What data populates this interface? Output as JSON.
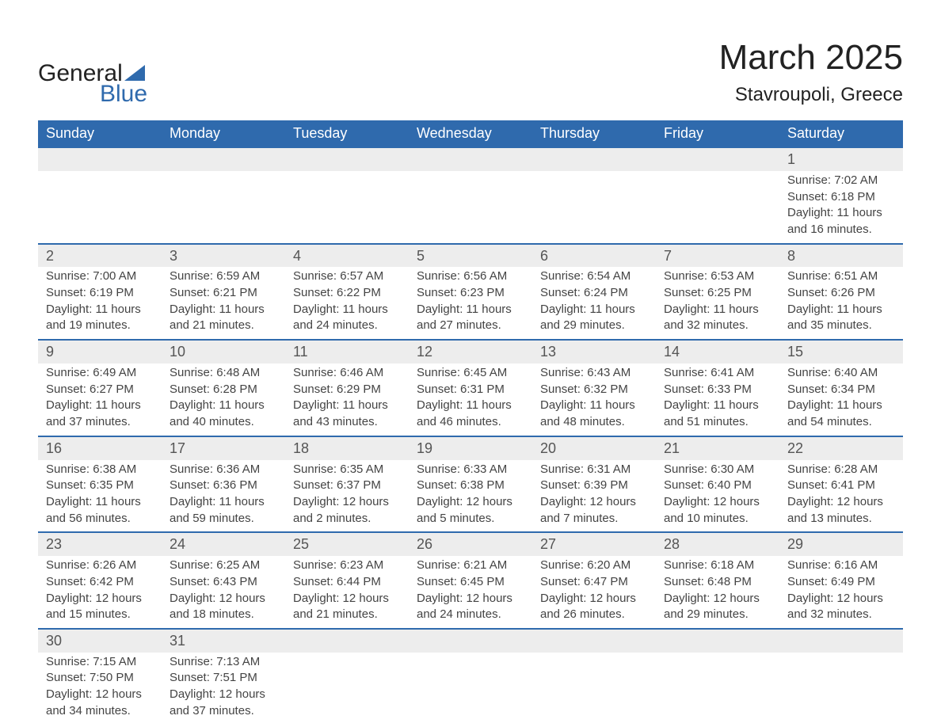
{
  "logo": {
    "line1": "General",
    "line2": "Blue"
  },
  "title": "March 2025",
  "location": "Stavroupoli, Greece",
  "headers": [
    "Sunday",
    "Monday",
    "Tuesday",
    "Wednesday",
    "Thursday",
    "Friday",
    "Saturday"
  ],
  "colors": {
    "header_bg": "#2f6aad",
    "header_text": "#ffffff",
    "daynum_bg": "#ededed",
    "row_border": "#2f6aad",
    "text": "#444444",
    "title_text": "#222222",
    "logo_accent": "#2f6aad",
    "background": "#ffffff"
  },
  "typography": {
    "title_fontsize": 44,
    "location_fontsize": 24,
    "header_fontsize": 18,
    "daynum_fontsize": 18,
    "body_fontsize": 15,
    "font_family": "Arial"
  },
  "weeks": [
    [
      null,
      null,
      null,
      null,
      null,
      null,
      {
        "d": "1",
        "sr": "7:02 AM",
        "ss": "6:18 PM",
        "dl": "11 hours and 16 minutes."
      }
    ],
    [
      {
        "d": "2",
        "sr": "7:00 AM",
        "ss": "6:19 PM",
        "dl": "11 hours and 19 minutes."
      },
      {
        "d": "3",
        "sr": "6:59 AM",
        "ss": "6:21 PM",
        "dl": "11 hours and 21 minutes."
      },
      {
        "d": "4",
        "sr": "6:57 AM",
        "ss": "6:22 PM",
        "dl": "11 hours and 24 minutes."
      },
      {
        "d": "5",
        "sr": "6:56 AM",
        "ss": "6:23 PM",
        "dl": "11 hours and 27 minutes."
      },
      {
        "d": "6",
        "sr": "6:54 AM",
        "ss": "6:24 PM",
        "dl": "11 hours and 29 minutes."
      },
      {
        "d": "7",
        "sr": "6:53 AM",
        "ss": "6:25 PM",
        "dl": "11 hours and 32 minutes."
      },
      {
        "d": "8",
        "sr": "6:51 AM",
        "ss": "6:26 PM",
        "dl": "11 hours and 35 minutes."
      }
    ],
    [
      {
        "d": "9",
        "sr": "6:49 AM",
        "ss": "6:27 PM",
        "dl": "11 hours and 37 minutes."
      },
      {
        "d": "10",
        "sr": "6:48 AM",
        "ss": "6:28 PM",
        "dl": "11 hours and 40 minutes."
      },
      {
        "d": "11",
        "sr": "6:46 AM",
        "ss": "6:29 PM",
        "dl": "11 hours and 43 minutes."
      },
      {
        "d": "12",
        "sr": "6:45 AM",
        "ss": "6:31 PM",
        "dl": "11 hours and 46 minutes."
      },
      {
        "d": "13",
        "sr": "6:43 AM",
        "ss": "6:32 PM",
        "dl": "11 hours and 48 minutes."
      },
      {
        "d": "14",
        "sr": "6:41 AM",
        "ss": "6:33 PM",
        "dl": "11 hours and 51 minutes."
      },
      {
        "d": "15",
        "sr": "6:40 AM",
        "ss": "6:34 PM",
        "dl": "11 hours and 54 minutes."
      }
    ],
    [
      {
        "d": "16",
        "sr": "6:38 AM",
        "ss": "6:35 PM",
        "dl": "11 hours and 56 minutes."
      },
      {
        "d": "17",
        "sr": "6:36 AM",
        "ss": "6:36 PM",
        "dl": "11 hours and 59 minutes."
      },
      {
        "d": "18",
        "sr": "6:35 AM",
        "ss": "6:37 PM",
        "dl": "12 hours and 2 minutes."
      },
      {
        "d": "19",
        "sr": "6:33 AM",
        "ss": "6:38 PM",
        "dl": "12 hours and 5 minutes."
      },
      {
        "d": "20",
        "sr": "6:31 AM",
        "ss": "6:39 PM",
        "dl": "12 hours and 7 minutes."
      },
      {
        "d": "21",
        "sr": "6:30 AM",
        "ss": "6:40 PM",
        "dl": "12 hours and 10 minutes."
      },
      {
        "d": "22",
        "sr": "6:28 AM",
        "ss": "6:41 PM",
        "dl": "12 hours and 13 minutes."
      }
    ],
    [
      {
        "d": "23",
        "sr": "6:26 AM",
        "ss": "6:42 PM",
        "dl": "12 hours and 15 minutes."
      },
      {
        "d": "24",
        "sr": "6:25 AM",
        "ss": "6:43 PM",
        "dl": "12 hours and 18 minutes."
      },
      {
        "d": "25",
        "sr": "6:23 AM",
        "ss": "6:44 PM",
        "dl": "12 hours and 21 minutes."
      },
      {
        "d": "26",
        "sr": "6:21 AM",
        "ss": "6:45 PM",
        "dl": "12 hours and 24 minutes."
      },
      {
        "d": "27",
        "sr": "6:20 AM",
        "ss": "6:47 PM",
        "dl": "12 hours and 26 minutes."
      },
      {
        "d": "28",
        "sr": "6:18 AM",
        "ss": "6:48 PM",
        "dl": "12 hours and 29 minutes."
      },
      {
        "d": "29",
        "sr": "6:16 AM",
        "ss": "6:49 PM",
        "dl": "12 hours and 32 minutes."
      }
    ],
    [
      {
        "d": "30",
        "sr": "7:15 AM",
        "ss": "7:50 PM",
        "dl": "12 hours and 34 minutes."
      },
      {
        "d": "31",
        "sr": "7:13 AM",
        "ss": "7:51 PM",
        "dl": "12 hours and 37 minutes."
      },
      null,
      null,
      null,
      null,
      null
    ]
  ],
  "labels": {
    "sunrise": "Sunrise:",
    "sunset": "Sunset:",
    "daylight": "Daylight:"
  }
}
